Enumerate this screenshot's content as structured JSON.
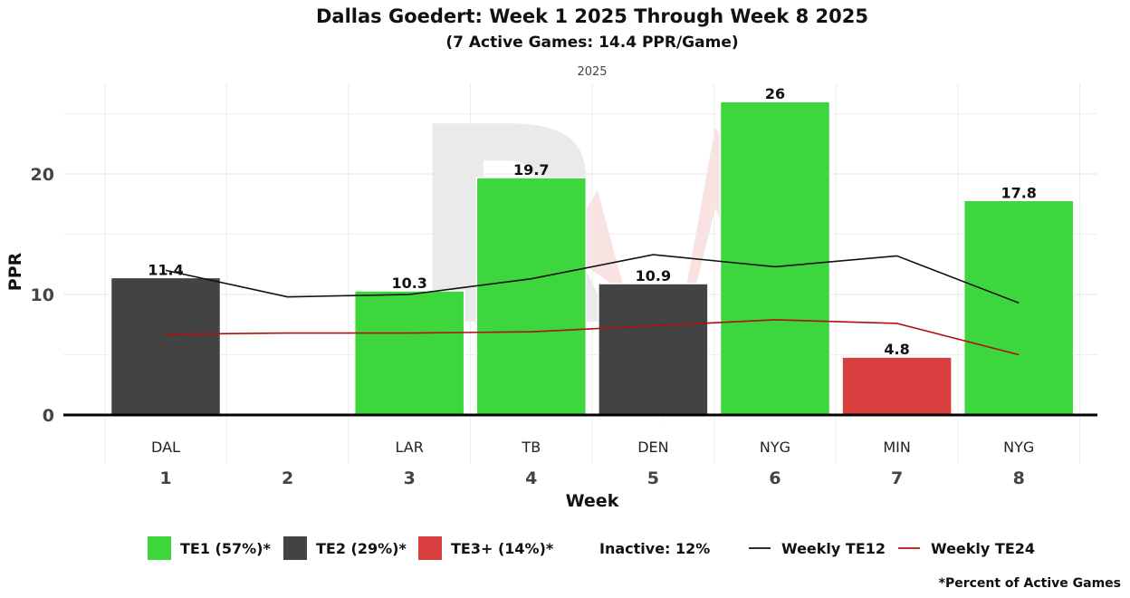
{
  "chart_data": {
    "type": "bar",
    "title": "Dallas Goedert: Week 1 2025 Through Week 8 2025",
    "subtitle": "(7 Active Games: 14.4 PPR/Game)",
    "facet_label": "2025",
    "xlabel": "Week",
    "ylabel": "PPR",
    "ylim": [
      0,
      27
    ],
    "yticks": [
      0,
      10,
      20
    ],
    "categories": [
      "1",
      "2",
      "3",
      "4",
      "5",
      "6",
      "7",
      "8"
    ],
    "opponents": [
      "DAL",
      "",
      "LAR",
      "TB",
      "DEN",
      "NYG",
      "MIN",
      "NYG"
    ],
    "values": [
      11.4,
      null,
      10.3,
      19.7,
      10.9,
      26,
      4.8,
      17.8
    ],
    "value_labels": [
      "11.4",
      "",
      "10.3",
      "19.7",
      "10.9",
      "26",
      "4.8",
      "17.8"
    ],
    "tiers": [
      "TE2",
      null,
      "TE1",
      "TE1",
      "TE2",
      "TE1",
      "TE3+",
      "TE1"
    ],
    "tier_colors": {
      "TE1": "#3dd63d",
      "TE2": "#434343",
      "TE3+": "#d93f3f"
    },
    "series": [
      {
        "name": "Weekly TE12",
        "color": "#111111",
        "values": [
          12.0,
          9.8,
          10.0,
          11.3,
          13.3,
          12.3,
          13.2,
          9.3
        ]
      },
      {
        "name": "Weekly TE24",
        "color": "#b01010",
        "values": [
          6.7,
          6.8,
          6.8,
          6.9,
          7.4,
          7.9,
          7.6,
          5.0
        ]
      }
    ],
    "legend": {
      "position": "bottom",
      "items": [
        {
          "label": "TE1 (57%)*",
          "kind": "swatch",
          "color": "#3dd63d"
        },
        {
          "label": "TE2 (29%)*",
          "kind": "swatch",
          "color": "#434343"
        },
        {
          "label": "TE3+ (14%)*",
          "kind": "swatch",
          "color": "#d93f3f"
        },
        {
          "label": "Inactive: 12%",
          "kind": "text"
        },
        {
          "label": "Weekly TE12",
          "kind": "line",
          "color": "#111111"
        },
        {
          "label": "Weekly TE24",
          "kind": "line",
          "color": "#b01010"
        }
      ]
    },
    "footnote": "*Percent of Active Games",
    "grid": true
  }
}
